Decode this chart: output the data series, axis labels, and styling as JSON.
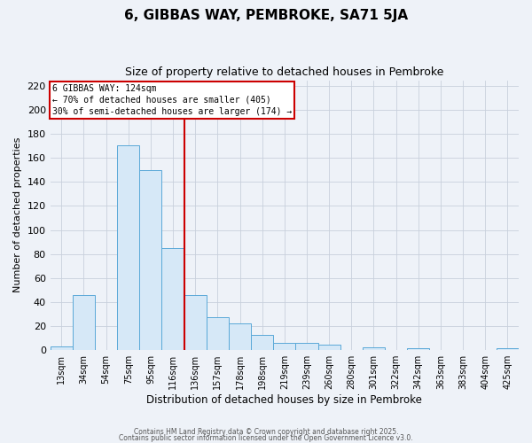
{
  "title": "6, GIBBAS WAY, PEMBROKE, SA71 5JA",
  "subtitle": "Size of property relative to detached houses in Pembroke",
  "xlabel": "Distribution of detached houses by size in Pembroke",
  "ylabel": "Number of detached properties",
  "bar_labels": [
    "13sqm",
    "34sqm",
    "54sqm",
    "75sqm",
    "95sqm",
    "116sqm",
    "136sqm",
    "157sqm",
    "178sqm",
    "198sqm",
    "219sqm",
    "239sqm",
    "260sqm",
    "280sqm",
    "301sqm",
    "322sqm",
    "342sqm",
    "363sqm",
    "383sqm",
    "404sqm",
    "425sqm"
  ],
  "bar_values": [
    3,
    46,
    0,
    171,
    150,
    85,
    46,
    27,
    22,
    12,
    6,
    6,
    4,
    0,
    2,
    0,
    1,
    0,
    0,
    0,
    1
  ],
  "bar_color_fill": "#d6e8f7",
  "bar_color_edge": "#5aa8d8",
  "vline_x_index": 5.5,
  "vline_color": "#cc0000",
  "annotation_title": "6 GIBBAS WAY: 124sqm",
  "annotation_line1": "← 70% of detached houses are smaller (405)",
  "annotation_line2": "30% of semi-detached houses are larger (174) →",
  "annotation_box_facecolor": "#ffffff",
  "annotation_box_edgecolor": "#cc0000",
  "ylim": [
    0,
    225
  ],
  "yticks": [
    0,
    20,
    40,
    60,
    80,
    100,
    120,
    140,
    160,
    180,
    200,
    220
  ],
  "footer1": "Contains HM Land Registry data © Crown copyright and database right 2025.",
  "footer2": "Contains public sector information licensed under the Open Government Licence v3.0.",
  "bg_color": "#eef2f8",
  "grid_color": "#ffffff",
  "grid_line_color": "#c8d0dc"
}
